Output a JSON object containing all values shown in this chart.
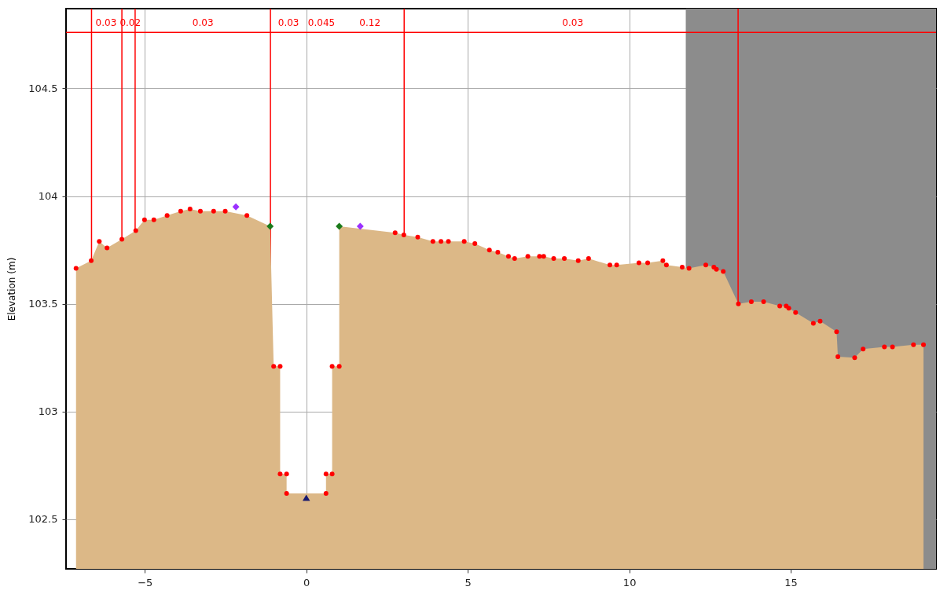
{
  "chart_data": {
    "type": "area",
    "ylabel": "Elevation (m)",
    "xlim": [
      -7.44,
      19.5
    ],
    "ylim": [
      102.27,
      104.87
    ],
    "xticks": [
      -5,
      0,
      5,
      10,
      15
    ],
    "yticks": [
      102.5,
      103,
      103.5,
      104,
      104.5
    ],
    "grid": true,
    "series": [
      {
        "color": "#dcb887",
        "x": [
          -7.13,
          -6.66,
          -6.41,
          -6.17,
          -5.71,
          -5.28,
          -5.01,
          -4.72,
          -4.31,
          -3.89,
          -3.6,
          -3.28,
          -2.87,
          -2.51,
          -1.84,
          -1.12,
          -1.01,
          -0.81,
          -0.81,
          -0.61,
          -0.61,
          0.61,
          0.61,
          0.8,
          0.8,
          1.02,
          1.02,
          2.75,
          3.02,
          3.45,
          3.92,
          4.17,
          4.4,
          4.89,
          5.22,
          5.67,
          5.93,
          6.26,
          6.45,
          6.86,
          7.22,
          7.35,
          7.66,
          7.99,
          8.42,
          8.74,
          9.4,
          9.61,
          10.3,
          10.57,
          11.04,
          11.15,
          11.64,
          11.85,
          12.37,
          12.62,
          12.7,
          12.91,
          13.38,
          13.78,
          14.16,
          14.66,
          14.86,
          14.94,
          15.15,
          15.7,
          15.91,
          16.42,
          16.46,
          16.98,
          17.24,
          17.9,
          18.15,
          18.8,
          19.11
        ],
        "values": [
          103.665,
          103.7,
          103.79,
          103.76,
          103.8,
          103.84,
          103.89,
          103.89,
          103.91,
          103.93,
          103.94,
          103.93,
          103.93,
          103.93,
          103.91,
          103.86,
          103.21,
          103.21,
          102.71,
          102.71,
          102.62,
          102.62,
          102.71,
          102.71,
          103.21,
          103.21,
          103.86,
          103.83,
          103.82,
          103.81,
          103.79,
          103.79,
          103.79,
          103.79,
          103.78,
          103.75,
          103.74,
          103.72,
          103.71,
          103.72,
          103.72,
          103.72,
          103.71,
          103.71,
          103.7,
          103.71,
          103.68,
          103.68,
          103.69,
          103.69,
          103.7,
          103.68,
          103.67,
          103.665,
          103.68,
          103.67,
          103.66,
          103.65,
          103.5,
          103.51,
          103.51,
          103.49,
          103.49,
          103.48,
          103.46,
          103.41,
          103.42,
          103.37,
          103.255,
          103.25,
          103.29,
          103.3,
          103.3,
          103.31,
          103.31
        ]
      },
      {
        "type": "scatter",
        "color": "#ff0000",
        "marker": "circle",
        "x": [
          -7.13,
          -6.66,
          -6.41,
          -6.17,
          -5.71,
          -5.28,
          -5.01,
          -4.72,
          -4.31,
          -3.89,
          -3.6,
          -3.28,
          -2.87,
          -2.51,
          -1.84,
          -1.01,
          -0.81,
          -0.81,
          -0.61,
          -0.61,
          0.61,
          0.61,
          0.8,
          0.8,
          1.02,
          2.75,
          3.02,
          3.45,
          3.92,
          4.17,
          4.4,
          4.89,
          5.22,
          5.67,
          5.93,
          6.26,
          6.45,
          6.86,
          7.22,
          7.35,
          7.66,
          7.99,
          8.42,
          8.74,
          9.4,
          9.61,
          10.3,
          10.57,
          11.04,
          11.15,
          11.64,
          11.85,
          12.37,
          12.62,
          12.7,
          12.91,
          13.38,
          13.78,
          14.16,
          14.66,
          14.86,
          14.94,
          15.15,
          15.7,
          15.91,
          16.42,
          16.46,
          16.98,
          17.24,
          17.9,
          18.15,
          18.8,
          19.11
        ],
        "values": [
          103.665,
          103.7,
          103.79,
          103.76,
          103.8,
          103.84,
          103.89,
          103.89,
          103.91,
          103.93,
          103.94,
          103.93,
          103.93,
          103.93,
          103.91,
          103.21,
          103.21,
          102.71,
          102.71,
          102.62,
          102.62,
          102.71,
          102.71,
          103.21,
          103.21,
          103.83,
          103.82,
          103.81,
          103.79,
          103.79,
          103.79,
          103.79,
          103.78,
          103.75,
          103.74,
          103.72,
          103.71,
          103.72,
          103.72,
          103.72,
          103.71,
          103.71,
          103.7,
          103.71,
          103.68,
          103.68,
          103.69,
          103.69,
          103.7,
          103.68,
          103.67,
          103.665,
          103.68,
          103.67,
          103.66,
          103.65,
          103.5,
          103.51,
          103.51,
          103.49,
          103.49,
          103.48,
          103.46,
          103.41,
          103.42,
          103.37,
          103.255,
          103.25,
          103.29,
          103.3,
          103.3,
          103.31,
          103.31
        ]
      },
      {
        "type": "scatter",
        "color": "#1a7a1a",
        "marker": "diamond",
        "x": [
          -1.12,
          1.02
        ],
        "values": [
          103.86,
          103.86
        ]
      },
      {
        "type": "scatter",
        "color": "#9b30ff",
        "marker": "diamond",
        "x": [
          -2.18,
          1.67
        ],
        "values": [
          103.95,
          103.86
        ]
      },
      {
        "type": "scatter",
        "color": "#1a1a6e",
        "marker": "triangle",
        "x": [
          0
        ],
        "values": [
          102.6
        ]
      }
    ],
    "bands": [
      {
        "axis": "x",
        "from": 11.75,
        "to": 19.5,
        "color": "#8c8c8c"
      }
    ],
    "ref_lines": [
      {
        "axis": "x",
        "value": -6.65,
        "color": "#ff0000"
      },
      {
        "axis": "x",
        "value": -5.71,
        "color": "#ff0000"
      },
      {
        "axis": "x",
        "value": -5.3,
        "color": "#ff0000"
      },
      {
        "axis": "x",
        "value": -1.11,
        "color": "#ff0000"
      },
      {
        "axis": "x",
        "value": 3.03,
        "color": "#ff0000"
      },
      {
        "axis": "x",
        "value": 13.37,
        "color": "#ff0000"
      },
      {
        "axis": "y",
        "value": 104.76,
        "color": "#ff0000"
      }
    ],
    "annotations": [
      {
        "text": "0.03",
        "x": -6.2,
        "y": 104.76
      },
      {
        "text": "0.02",
        "x": -5.45,
        "y": 104.76
      },
      {
        "text": "0.03",
        "x": -3.2,
        "y": 104.76
      },
      {
        "text": "0.03",
        "x": -0.55,
        "y": 104.76
      },
      {
        "text": "0.045",
        "x": 0.47,
        "y": 104.76
      },
      {
        "text": "0.12",
        "x": 1.97,
        "y": 104.76
      },
      {
        "text": "0.03",
        "x": 8.25,
        "y": 104.76
      }
    ]
  }
}
